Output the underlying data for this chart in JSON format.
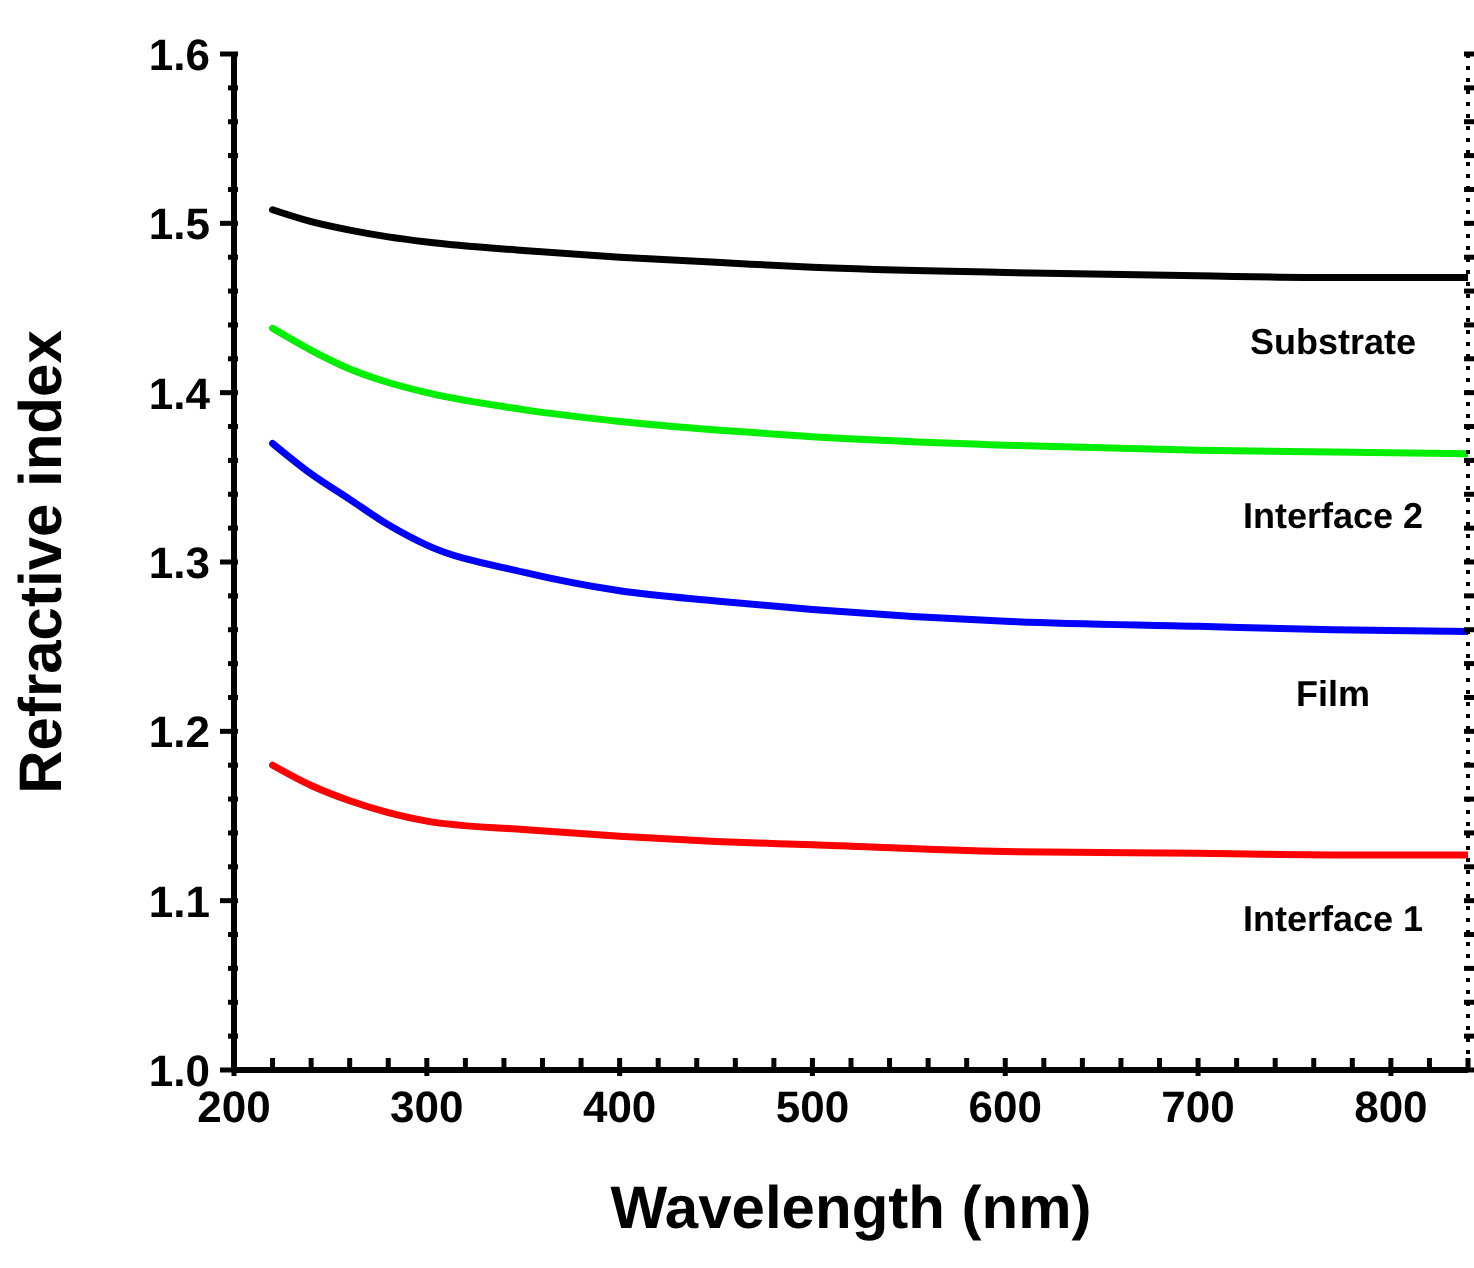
{
  "chart_data": {
    "type": "line",
    "xlabel": "Wavelength (nm)",
    "ylabel": "Refractive index",
    "xlim": [
      200,
      840
    ],
    "ylim": [
      1.0,
      1.6
    ],
    "xticks": [
      200,
      {
        "value": 220,
        "label": null
      },
      {
        "value": 240,
        "label": null
      },
      {
        "value": 260,
        "label": null
      },
      {
        "value": 280,
        "label": null
      },
      300,
      {
        "value": 320,
        "label": null
      },
      {
        "value": 340,
        "label": null
      },
      {
        "value": 360,
        "label": null
      },
      {
        "value": 380,
        "label": null
      },
      400,
      {
        "value": 420,
        "label": null
      },
      {
        "value": 440,
        "label": null
      },
      {
        "value": 460,
        "label": null
      },
      {
        "value": 480,
        "label": null
      },
      500,
      {
        "value": 520,
        "label": null
      },
      {
        "value": 540,
        "label": null
      },
      {
        "value": 560,
        "label": null
      },
      {
        "value": 580,
        "label": null
      },
      600,
      {
        "value": 620,
        "label": null
      },
      {
        "value": 640,
        "label": null
      },
      {
        "value": 660,
        "label": null
      },
      {
        "value": 680,
        "label": null
      },
      700,
      {
        "value": 720,
        "label": null
      },
      {
        "value": 740,
        "label": null
      },
      {
        "value": 760,
        "label": null
      },
      {
        "value": 780,
        "label": null
      },
      800,
      {
        "value": 820,
        "label": null
      },
      {
        "value": 840,
        "label": null
      }
    ],
    "yticks": [
      {
        "value": 1.0,
        "label": "1.0"
      },
      {
        "value": 1.02,
        "label": null
      },
      {
        "value": 1.04,
        "label": null
      },
      {
        "value": 1.06,
        "label": null
      },
      {
        "value": 1.08,
        "label": null
      },
      1.1,
      {
        "value": 1.12,
        "label": null
      },
      {
        "value": 1.14,
        "label": null
      },
      {
        "value": 1.16,
        "label": null
      },
      {
        "value": 1.18,
        "label": null
      },
      1.2,
      {
        "value": 1.22,
        "label": null
      },
      {
        "value": 1.24,
        "label": null
      },
      {
        "value": 1.26,
        "label": null
      },
      {
        "value": 1.28,
        "label": null
      },
      1.3,
      {
        "value": 1.32,
        "label": null
      },
      {
        "value": 1.34,
        "label": null
      },
      {
        "value": 1.36,
        "label": null
      },
      {
        "value": 1.38,
        "label": null
      },
      1.4,
      {
        "value": 1.42,
        "label": null
      },
      {
        "value": 1.44,
        "label": null
      },
      {
        "value": 1.46,
        "label": null
      },
      {
        "value": 1.48,
        "label": null
      },
      1.5,
      {
        "value": 1.52,
        "label": null
      },
      {
        "value": 1.54,
        "label": null
      },
      {
        "value": 1.56,
        "label": null
      },
      {
        "value": 1.58,
        "label": null
      },
      1.6
    ],
    "annotations": [
      "Substrate",
      "Interface 2",
      "Film",
      "Interface 1"
    ],
    "grid": false,
    "legend": false,
    "marker": "none",
    "line_style": "solid",
    "x": [
      220,
      240,
      260,
      280,
      300,
      350,
      400,
      450,
      500,
      600,
      700,
      770,
      840
    ],
    "series": [
      {
        "color": "#000000",
        "values": [
          1.508,
          1.501,
          1.496,
          1.492,
          1.489,
          1.484,
          1.48,
          1.477,
          1.474,
          1.471,
          1.469,
          1.468,
          1.468
        ]
      },
      {
        "color": "#00ee00",
        "values": [
          1.438,
          1.425,
          1.414,
          1.406,
          1.4,
          1.39,
          1.383,
          1.378,
          1.374,
          1.369,
          1.366,
          1.365,
          1.364
        ]
      },
      {
        "color": "#0000ff",
        "values": [
          1.37,
          1.352,
          1.337,
          1.322,
          1.31,
          1.294,
          1.283,
          1.277,
          1.272,
          1.265,
          1.262,
          1.26,
          1.259
        ]
      },
      {
        "color": "#ff0000",
        "values": [
          1.18,
          1.168,
          1.159,
          1.152,
          1.147,
          1.142,
          1.138,
          1.135,
          1.133,
          1.129,
          1.128,
          1.127,
          1.127
        ]
      }
    ]
  }
}
